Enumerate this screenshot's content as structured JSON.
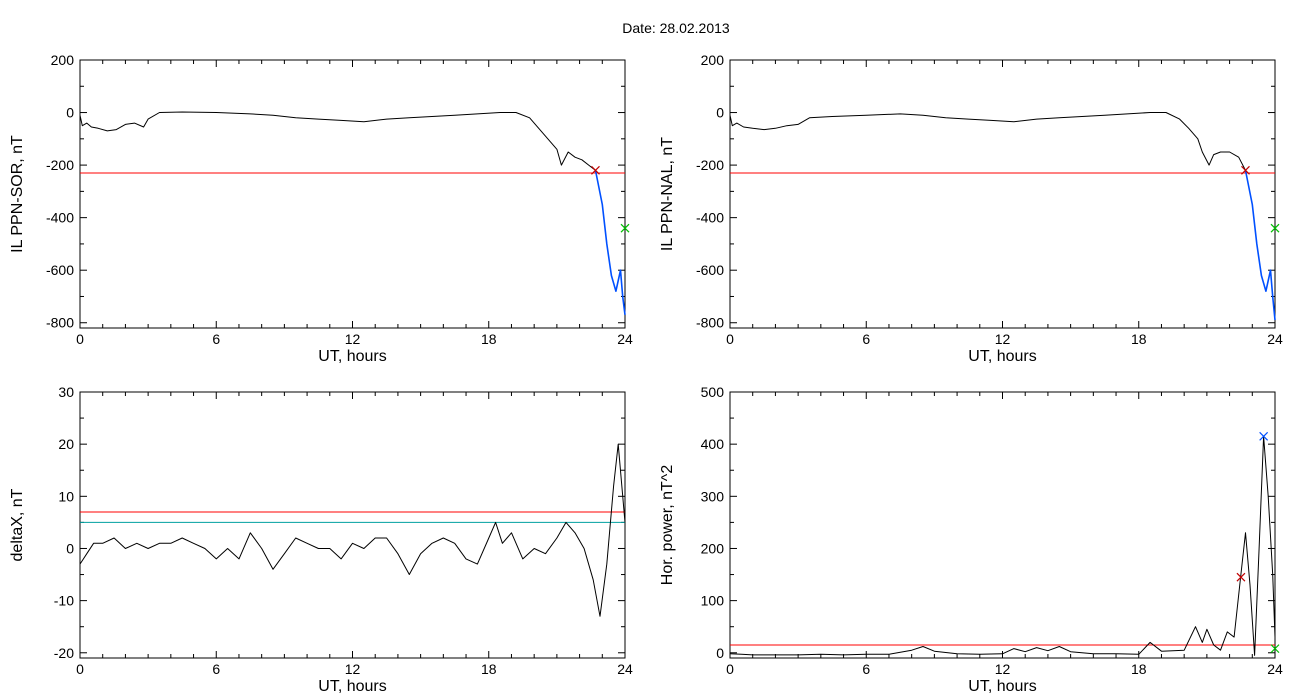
{
  "title": "Date:  28.02.2013",
  "colors": {
    "threshold": "#ff0000",
    "threshold2": "#00a0a0",
    "blue": "#0050ff",
    "green": "#00c000",
    "marker": "#c00000",
    "curve": "#000000"
  },
  "chart_data": [
    {
      "type": "line",
      "xlabel": "UT, hours",
      "ylabel": "IL PPN-SOR, nT",
      "xlim": [
        0,
        24
      ],
      "ylim": [
        -820,
        200
      ],
      "xticks": [
        "0",
        "6",
        "12",
        "18",
        "24"
      ],
      "yticks": [
        "200",
        "0",
        "-200",
        "-400",
        "-600",
        "-800"
      ],
      "xtick_values": [
        0,
        6,
        12,
        18,
        24
      ],
      "ytick_values": [
        200,
        0,
        -200,
        -400,
        -600,
        -800
      ],
      "thresholds": [
        {
          "y": -230,
          "color": "#ff0000"
        }
      ],
      "series": [
        {
          "color": "#000000",
          "x": [
            0,
            0.1,
            0.3,
            0.5,
            0.8,
            1.2,
            1.6,
            2.0,
            2.4,
            2.8,
            3.0,
            3.5,
            4.5,
            6.0,
            7.5,
            8.5,
            9.5,
            10.5,
            11.5,
            12.5,
            13.5,
            14.5,
            15.5,
            16.5,
            17.5,
            18.5,
            19.2,
            19.8,
            20.2,
            20.6,
            21.0,
            21.2,
            21.5,
            21.8,
            22.1,
            22.4,
            22.7
          ],
          "y": [
            -10,
            -50,
            -40,
            -55,
            -60,
            -70,
            -65,
            -45,
            -40,
            -55,
            -25,
            0,
            2,
            0,
            -5,
            -10,
            -20,
            -25,
            -30,
            -35,
            -25,
            -20,
            -15,
            -10,
            -5,
            0,
            0,
            -20,
            -60,
            -100,
            -140,
            -200,
            -150,
            -170,
            -180,
            -200,
            -220
          ]
        },
        {
          "color": "#0050ff",
          "x": [
            22.7,
            23.0,
            23.2,
            23.4,
            23.6,
            23.8,
            23.9,
            24.0
          ],
          "y": [
            -220,
            -350,
            -500,
            -620,
            -680,
            -600,
            -700,
            -770
          ]
        }
      ],
      "markers": [
        {
          "x": 22.7,
          "y": -220,
          "color": "#c00000",
          "symbol": "x"
        },
        {
          "x": 24.0,
          "y": -440,
          "color": "#00c000",
          "symbol": "x"
        }
      ]
    },
    {
      "type": "line",
      "xlabel": "UT, hours",
      "ylabel": "IL PPN-NAL, nT",
      "xlim": [
        0,
        24
      ],
      "ylim": [
        -820,
        200
      ],
      "xticks": [
        "0",
        "6",
        "12",
        "18",
        "24"
      ],
      "yticks": [
        "200",
        "0",
        "-200",
        "-400",
        "-600",
        "-800"
      ],
      "xtick_values": [
        0,
        6,
        12,
        18,
        24
      ],
      "ytick_values": [
        200,
        0,
        -200,
        -400,
        -600,
        -800
      ],
      "thresholds": [
        {
          "y": -230,
          "color": "#ff0000"
        }
      ],
      "series": [
        {
          "color": "#000000",
          "x": [
            0,
            0.1,
            0.3,
            0.6,
            1.0,
            1.5,
            2.0,
            2.5,
            3.0,
            3.5,
            4.5,
            6.0,
            7.5,
            8.5,
            9.5,
            10.5,
            11.5,
            12.5,
            13.5,
            14.5,
            15.5,
            16.5,
            17.5,
            18.5,
            19.2,
            19.8,
            20.2,
            20.6,
            20.8,
            21.1,
            21.3,
            21.6,
            22.0,
            22.4,
            22.7
          ],
          "y": [
            -10,
            -50,
            -40,
            -55,
            -60,
            -65,
            -60,
            -50,
            -45,
            -20,
            -15,
            -10,
            -5,
            -10,
            -20,
            -25,
            -30,
            -35,
            -25,
            -20,
            -15,
            -10,
            -5,
            0,
            0,
            -25,
            -60,
            -100,
            -150,
            -200,
            -160,
            -150,
            -150,
            -170,
            -220
          ]
        },
        {
          "color": "#0050ff",
          "x": [
            22.7,
            23.0,
            23.2,
            23.4,
            23.6,
            23.8,
            23.9,
            24.0
          ],
          "y": [
            -220,
            -350,
            -500,
            -620,
            -680,
            -600,
            -700,
            -790
          ]
        }
      ],
      "markers": [
        {
          "x": 22.7,
          "y": -220,
          "color": "#c00000",
          "symbol": "x"
        },
        {
          "x": 24.0,
          "y": -440,
          "color": "#00c000",
          "symbol": "x"
        }
      ]
    },
    {
      "type": "line",
      "xlabel": "UT, hours",
      "ylabel": "deltaX, nT",
      "xlim": [
        0,
        24
      ],
      "ylim": [
        -21,
        30
      ],
      "xticks": [
        "0",
        "6",
        "12",
        "18",
        "24"
      ],
      "yticks": [
        "30",
        "20",
        "10",
        "0",
        "-10",
        "-20"
      ],
      "xtick_values": [
        0,
        6,
        12,
        18,
        24
      ],
      "ytick_values": [
        30,
        20,
        10,
        0,
        -10,
        -20
      ],
      "thresholds": [
        {
          "y": 7,
          "color": "#ff0000"
        },
        {
          "y": 5,
          "color": "#00a0a0"
        }
      ],
      "series": [
        {
          "color": "#000000",
          "x": [
            0,
            0.3,
            0.6,
            1.0,
            1.5,
            2.0,
            2.5,
            3.0,
            3.5,
            4.0,
            4.5,
            5.0,
            5.5,
            6.0,
            6.5,
            7.0,
            7.5,
            8.0,
            8.5,
            9.0,
            9.5,
            10.0,
            10.5,
            11.0,
            11.5,
            12.0,
            12.5,
            13.0,
            13.5,
            14.0,
            14.5,
            15.0,
            15.5,
            16.0,
            16.5,
            17.0,
            17.5,
            18.0,
            18.3,
            18.6,
            19.0,
            19.5,
            20.0,
            20.5,
            21.0,
            21.4,
            21.8,
            22.2,
            22.6,
            22.9,
            23.2,
            23.5,
            23.7,
            24.0
          ],
          "y": [
            -3,
            -1,
            1,
            1,
            2,
            0,
            1,
            0,
            1,
            1,
            2,
            1,
            0,
            -2,
            0,
            -2,
            3,
            0,
            -4,
            -1,
            2,
            1,
            0,
            0,
            -2,
            1,
            0,
            2,
            2,
            -1,
            -5,
            -1,
            1,
            2,
            1,
            -2,
            -3,
            2,
            5,
            1,
            3,
            -2,
            0,
            -1,
            2,
            5,
            3,
            0,
            -6,
            -13,
            -3,
            12,
            20,
            5
          ]
        }
      ],
      "markers": []
    },
    {
      "type": "line",
      "xlabel": "UT, hours",
      "ylabel": "Hor. power, nT^2",
      "xlim": [
        0,
        24
      ],
      "ylim": [
        -10,
        500
      ],
      "xticks": [
        "0",
        "6",
        "12",
        "18",
        "24"
      ],
      "yticks": [
        "500",
        "400",
        "300",
        "200",
        "100",
        "0"
      ],
      "xtick_values": [
        0,
        6,
        12,
        18,
        24
      ],
      "ytick_values": [
        500,
        400,
        300,
        200,
        100,
        0
      ],
      "thresholds": [
        {
          "y": 15,
          "color": "#ff0000"
        }
      ],
      "series": [
        {
          "color": "#000000",
          "x": [
            0,
            0.5,
            1.0,
            2.0,
            3.0,
            4.0,
            5.0,
            6.0,
            7.0,
            8.0,
            8.5,
            9.0,
            10.0,
            11.0,
            12.0,
            12.5,
            13.0,
            13.5,
            14.0,
            14.5,
            15.0,
            16.0,
            17.0,
            18.0,
            18.5,
            19.0,
            20.0,
            20.5,
            20.8,
            21.0,
            21.3,
            21.6,
            21.9,
            22.2,
            22.5,
            22.7,
            22.9,
            23.1,
            23.3,
            23.5,
            23.7,
            23.9,
            24.0
          ],
          "y": [
            -2,
            -3,
            -4,
            -4,
            -4,
            -3,
            -4,
            -3,
            -3,
            5,
            12,
            3,
            -2,
            -3,
            -2,
            8,
            2,
            10,
            4,
            12,
            2,
            -2,
            -2,
            -3,
            20,
            3,
            5,
            50,
            20,
            45,
            15,
            5,
            40,
            30,
            150,
            230,
            130,
            -5,
            200,
            415,
            300,
            150,
            30
          ]
        }
      ],
      "markers": [
        {
          "x": 22.5,
          "y": 145,
          "color": "#c00000",
          "symbol": "x"
        },
        {
          "x": 23.5,
          "y": 415,
          "color": "#0050ff",
          "symbol": "x"
        },
        {
          "x": 24.0,
          "y": 8,
          "color": "#00c000",
          "symbol": "x"
        }
      ]
    }
  ]
}
